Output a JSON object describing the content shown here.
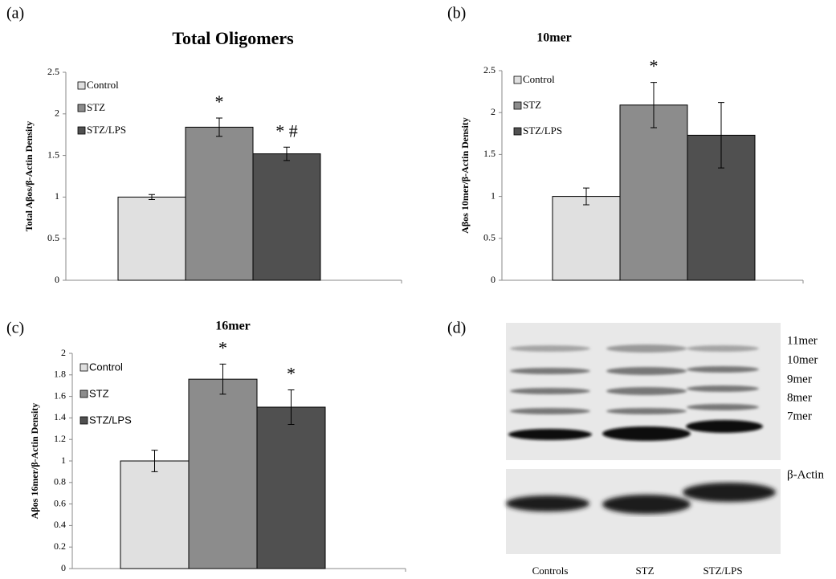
{
  "chart_data": [
    {
      "type": "bar",
      "panel_label": "(a)",
      "title": "Total Oligomers",
      "y_label": "Total Aβos/β-Actin Density",
      "ylim": [
        0,
        2.5
      ],
      "yticks": [
        0,
        0.5,
        1,
        1.5,
        2,
        2.5
      ],
      "series": [
        {
          "name": "Control",
          "color": "#e0e0e0",
          "values": [
            1.0
          ],
          "errors": [
            0.03
          ]
        },
        {
          "name": "STZ",
          "color": "#8c8c8c",
          "values": [
            1.84
          ],
          "errors": [
            0.11
          ],
          "annotation": "*"
        },
        {
          "name": "STZ/LPS",
          "color": "#505050",
          "values": [
            1.52
          ],
          "errors": [
            0.08
          ],
          "annotation": "* #"
        }
      ]
    },
    {
      "type": "bar",
      "panel_label": "(b)",
      "title": "10mer",
      "y_label": "Aβos 10mer/β-Actin Density",
      "ylim": [
        0,
        2.5
      ],
      "yticks": [
        0,
        0.5,
        1,
        1.5,
        2,
        2.5
      ],
      "series": [
        {
          "name": "Control",
          "color": "#e0e0e0",
          "values": [
            1.0
          ],
          "errors": [
            0.1
          ]
        },
        {
          "name": "STZ",
          "color": "#8c8c8c",
          "values": [
            2.09
          ],
          "errors": [
            0.27
          ],
          "annotation": "*"
        },
        {
          "name": "STZ/LPS",
          "color": "#505050",
          "values": [
            1.73
          ],
          "errors": [
            0.39
          ]
        }
      ]
    },
    {
      "type": "bar",
      "panel_label": "(c)",
      "title": "16mer",
      "y_label": "Aβos 16mer/β-Actin Density",
      "ylim": [
        0,
        2
      ],
      "yticks": [
        0,
        0.2,
        0.4,
        0.6,
        0.8,
        1,
        1.2,
        1.4,
        1.6,
        1.8,
        2
      ],
      "series": [
        {
          "name": "Control",
          "color": "#e0e0e0",
          "values": [
            1.0
          ],
          "errors": [
            0.1
          ]
        },
        {
          "name": "STZ",
          "color": "#8c8c8c",
          "values": [
            1.76
          ],
          "errors": [
            0.14
          ],
          "annotation": "*"
        },
        {
          "name": "STZ/LPS",
          "color": "#505050",
          "values": [
            1.5
          ],
          "errors": [
            0.16
          ],
          "annotation": "*"
        }
      ]
    }
  ],
  "blot": {
    "panel_label": "(d)",
    "band_labels": [
      "11mer",
      "10mer",
      "9mer",
      "8mer",
      "7mer"
    ],
    "loading_control_label": "β-Actin",
    "lane_labels": [
      "Controls",
      "STZ",
      "STZ/LPS"
    ]
  }
}
